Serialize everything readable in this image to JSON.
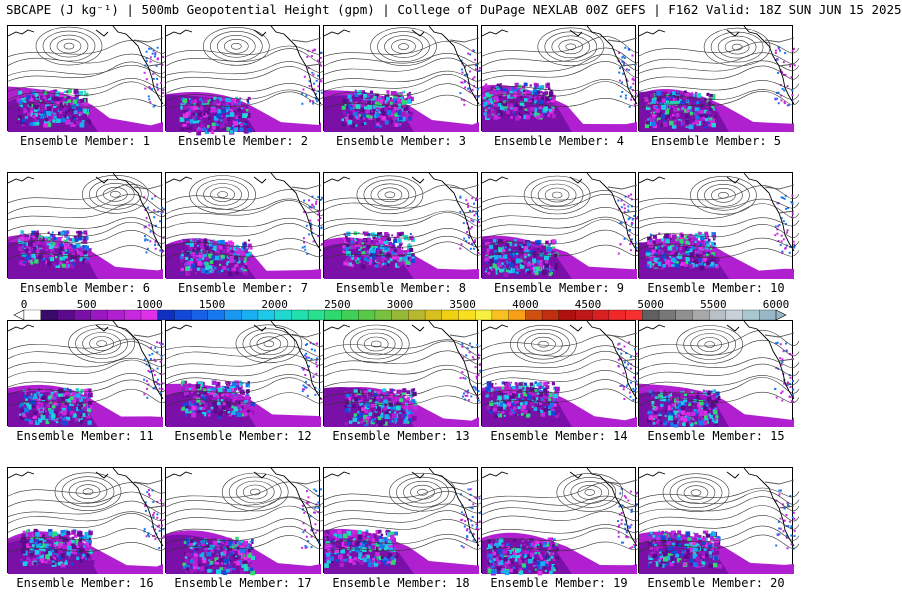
{
  "title": "SBCAPE (J kg⁻¹) | 500mb Geopotential Height (gpm) | College of DuPage NEXLAB 00Z GEFS | F162 Valid: 18Z SUN JUN 15 2025",
  "members": [
    {
      "label": "Ensemble Member: 1"
    },
    {
      "label": "Ensemble Member: 2"
    },
    {
      "label": "Ensemble Member: 3"
    },
    {
      "label": "Ensemble Member: 4"
    },
    {
      "label": "Ensemble Member: 5"
    },
    {
      "label": "Ensemble Member: 6"
    },
    {
      "label": "Ensemble Member: 7"
    },
    {
      "label": "Ensemble Member: 8"
    },
    {
      "label": "Ensemble Member: 9"
    },
    {
      "label": "Ensemble Member: 10"
    },
    {
      "label": "Ensemble Member: 11"
    },
    {
      "label": "Ensemble Member: 12"
    },
    {
      "label": "Ensemble Member: 13"
    },
    {
      "label": "Ensemble Member: 14"
    },
    {
      "label": "Ensemble Member: 15"
    },
    {
      "label": "Ensemble Member: 16"
    },
    {
      "label": "Ensemble Member: 17"
    },
    {
      "label": "Ensemble Member: 18"
    },
    {
      "label": "Ensemble Member: 19"
    },
    {
      "label": "Ensemble Member: 20"
    }
  ],
  "colorbar": {
    "ticks": [
      "0",
      "500",
      "1000",
      "1500",
      "2000",
      "2500",
      "3000",
      "3500",
      "4000",
      "4500",
      "5000",
      "5500",
      "6000"
    ],
    "colors": [
      "#ffffff",
      "#3a0a6a",
      "#5a0a8a",
      "#7a10a8",
      "#9a18c0",
      "#b020d0",
      "#c828e0",
      "#e030e8",
      "#1030c0",
      "#1448d8",
      "#1860e8",
      "#1878f0",
      "#1898f0",
      "#18b0f0",
      "#20c8e8",
      "#20d8d0",
      "#20e0b0",
      "#28e090",
      "#30d870",
      "#40d058",
      "#58c848",
      "#78c040",
      "#98b838",
      "#b8b830",
      "#d8c020",
      "#f0d010",
      "#f8e020",
      "#f8f040",
      "#f8c020",
      "#f8a018",
      "#d05010",
      "#c03010",
      "#b01010",
      "#c01818",
      "#d82020",
      "#f02828",
      "#f83030",
      "#606060",
      "#787878",
      "#909090",
      "#a8a8a8",
      "#b8c0c8",
      "#c8d0d8",
      "#a8c8d0",
      "#98b8c8"
    ]
  }
}
